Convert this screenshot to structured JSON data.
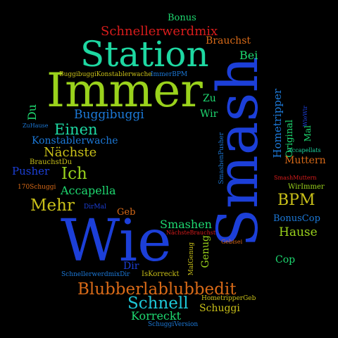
{
  "words": {
    "w1": {
      "text": "Wie",
      "color": "#1c3fd8"
    },
    "w2": {
      "text": "Smash",
      "color": "#1c3fd8"
    },
    "w3": {
      "text": "Immer",
      "color": "#9ad21c"
    },
    "w4": {
      "text": "Station",
      "color": "#1ed8a2"
    },
    "w5": {
      "text": "Blubberlablubbedit",
      "color": "#d86a18"
    },
    "w6": {
      "text": "Schnellerwerdmix",
      "color": "#d81c1c"
    },
    "w7": {
      "text": "Bonus",
      "color": "#1ed870"
    },
    "w8": {
      "text": "Brauchst",
      "color": "#d86a18"
    },
    "w9": {
      "text": "Bei",
      "color": "#1ed870"
    },
    "w10": {
      "text": "BuggibuggiKonstablerwache",
      "color": "#c9c019"
    },
    "w11": {
      "text": "ImmerBPM",
      "color": "#1c79d8"
    },
    "w12": {
      "text": "Zu",
      "color": "#1ed870"
    },
    "w13": {
      "text": "Wir",
      "color": "#1ed870"
    },
    "w14": {
      "text": "Buggibuggi",
      "color": "#1c79d8"
    },
    "w15": {
      "text": "Du",
      "color": "#1ed870"
    },
    "w16": {
      "text": "Einen",
      "color": "#1ed8a2"
    },
    "w17": {
      "text": "ZuHause",
      "color": "#1c79d8"
    },
    "w18": {
      "text": "Konstablerwache",
      "color": "#1c79d8"
    },
    "w19": {
      "text": "Nächste",
      "color": "#c9c019"
    },
    "w20": {
      "text": "BrauchstDu",
      "color": "#c9c019"
    },
    "w21": {
      "text": "Pusher",
      "color": "#1c3fd8"
    },
    "w22": {
      "text": "Ich",
      "color": "#9ad21c"
    },
    "w23": {
      "text": "170Schuggi",
      "color": "#d86a18"
    },
    "w24": {
      "text": "Accapella",
      "color": "#1ed870"
    },
    "w25": {
      "text": "Mehr",
      "color": "#c9c019"
    },
    "w26": {
      "text": "DirMal",
      "color": "#1c3fd8"
    },
    "w27": {
      "text": "Geb",
      "color": "#d86a18"
    },
    "w28": {
      "text": "Smashen",
      "color": "#1ed870"
    },
    "w29": {
      "text": "NächsteBrauchst",
      "color": "#d81c1c"
    },
    "w30": {
      "text": "Gebisei",
      "color": "#d86a18"
    },
    "w31": {
      "text": "Genug",
      "color": "#9ad21c"
    },
    "w32": {
      "text": "MalGenug",
      "color": "#c9c019"
    },
    "w33": {
      "text": "Dir",
      "color": "#1c3fd8"
    },
    "w34": {
      "text": "SchnellerwerdmixDir",
      "color": "#1c79d8"
    },
    "w35": {
      "text": "IsKorreckt",
      "color": "#c9c019"
    },
    "w36": {
      "text": "Schnell",
      "color": "#1ec8d8"
    },
    "w37": {
      "text": "HometripperGeb",
      "color": "#c9c019"
    },
    "w38": {
      "text": "Korreckt",
      "color": "#1ed870"
    },
    "w39": {
      "text": "Schuggi",
      "color": "#c9c019"
    },
    "w40": {
      "text": "SchuggiVersion",
      "color": "#1c79d8"
    },
    "w41": {
      "text": "Hometripper",
      "color": "#1c79d8"
    },
    "w42": {
      "text": "Original",
      "color": "#1ed870"
    },
    "w43": {
      "text": "Mal",
      "color": "#1ed870"
    },
    "w44": {
      "text": "WieWir",
      "color": "#1c3fd8"
    },
    "w45": {
      "text": "Accapellats",
      "color": "#1ed8a2"
    },
    "w46": {
      "text": "Muttern",
      "color": "#d86a18"
    },
    "w47": {
      "text": "SmashenPusher",
      "color": "#1c79d8"
    },
    "w48": {
      "text": "SmashMuttern",
      "color": "#d81c1c"
    },
    "w49": {
      "text": "WirImmer",
      "color": "#9ad21c"
    },
    "w50": {
      "text": "BPM",
      "color": "#c9c019"
    },
    "w51": {
      "text": "BonusCop",
      "color": "#1c79d8"
    },
    "w52": {
      "text": "Hause",
      "color": "#9ad21c"
    },
    "w53": {
      "text": "Cop",
      "color": "#1ed870"
    }
  }
}
